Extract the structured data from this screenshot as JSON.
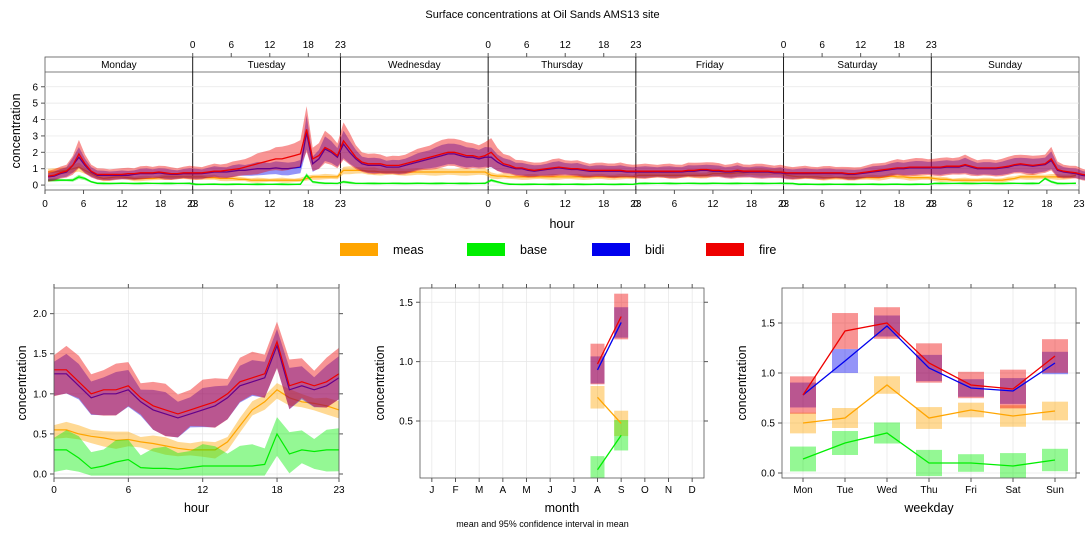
{
  "title": "Surface concentrations at Oil Sands AMS13 site",
  "footer": "mean and 95% confidence interval in mean",
  "legend": [
    {
      "label": "meas",
      "color": "#FFA500"
    },
    {
      "label": "base",
      "color": "#00EE00"
    },
    {
      "label": "bidi",
      "color": "#0000EE"
    },
    {
      "label": "fire",
      "color": "#EE0000"
    }
  ],
  "chart_data": [
    {
      "type": "line",
      "panel": "day-hour",
      "days": [
        "Monday",
        "Tuesday",
        "Wednesday",
        "Thursday",
        "Friday",
        "Saturday",
        "Sunday"
      ],
      "top_ticks": [
        "0",
        "6",
        "12",
        "18",
        "23"
      ],
      "bottom_ticks": [
        "0",
        "6",
        "12",
        "18",
        "23"
      ],
      "xlabel": "hour",
      "ylabel": "concentration",
      "yticks": [
        0,
        1,
        2,
        3,
        4,
        5,
        6
      ],
      "ylim": [
        -0.3,
        6.9
      ],
      "series": [
        {
          "name": "meas",
          "values": [
            0.8,
            0.8,
            0.85,
            0.9,
            1.0,
            1.1,
            0.9,
            0.7,
            0.5,
            0.4,
            0.45,
            0.5,
            0.5,
            0.45,
            0.4,
            0.4,
            0.4,
            0.4,
            0.45,
            0.5,
            0.5,
            0.5,
            0.5,
            0.5,
            0.5,
            0.5,
            0.45,
            0.45,
            0.4,
            0.4,
            0.4,
            0.35,
            0.35,
            0.3,
            0.3,
            0.3,
            0.3,
            0.3,
            0.3,
            0.3,
            0.3,
            0.3,
            0.4,
            0.5,
            0.5,
            0.5,
            0.5,
            0.5,
            0.9,
            0.9,
            0.9,
            0.9,
            0.85,
            0.85,
            0.8,
            0.8,
            0.8,
            0.8,
            0.8,
            0.8,
            0.8,
            0.8,
            0.8,
            0.8,
            0.8,
            0.8,
            0.8,
            0.8,
            0.8,
            0.8,
            0.8,
            0.8,
            0.6,
            0.55,
            0.55,
            0.5,
            0.5,
            0.5,
            0.5,
            0.5,
            0.5,
            0.5,
            0.5,
            0.5,
            0.5,
            0.5,
            0.5,
            0.5,
            0.5,
            0.5,
            0.5,
            0.5,
            0.5,
            0.5,
            0.5,
            0.5,
            0.6,
            0.6,
            0.6,
            0.6,
            0.6,
            0.6,
            0.6,
            0.6,
            0.6,
            0.6,
            0.6,
            0.6,
            0.7,
            0.7,
            0.7,
            0.7,
            0.75,
            0.75,
            0.8,
            0.8,
            0.8,
            0.8,
            0.8,
            0.8,
            0.6,
            0.55,
            0.5,
            0.5,
            0.5,
            0.5,
            0.45,
            0.45,
            0.45,
            0.45,
            0.45,
            0.45,
            0.45,
            0.45,
            0.45,
            0.45,
            0.5,
            0.55,
            0.5,
            0.5,
            0.45,
            0.45,
            0.45,
            0.45,
            0.4,
            0.35,
            0.35,
            0.3,
            0.3,
            0.3,
            0.3,
            0.3,
            0.3,
            0.3,
            0.3,
            0.3,
            0.35,
            0.4,
            0.5,
            0.5,
            0.5,
            0.5,
            0.5,
            0.5,
            0.5,
            0.5,
            0.5,
            0.6
          ]
        },
        {
          "name": "base",
          "values": [
            0.3,
            0.3,
            0.3,
            0.3,
            0.3,
            0.5,
            0.4,
            0.2,
            0.1,
            0.1,
            0.1,
            0.1,
            0.1,
            0.1,
            0.1,
            0.1,
            0.1,
            0.1,
            0.1,
            0.1,
            0.1,
            0.1,
            0.1,
            0.1,
            0.05,
            0.05,
            0.05,
            0.05,
            0.05,
            0.05,
            0.05,
            0.05,
            0.05,
            0.05,
            0.05,
            0.05,
            0.05,
            0.05,
            0.05,
            0.05,
            0.05,
            0.05,
            0.6,
            0.2,
            0.15,
            0.1,
            0.1,
            0.1,
            0.2,
            0.15,
            0.1,
            0.1,
            0.1,
            0.1,
            0.1,
            0.1,
            0.1,
            0.1,
            0.1,
            0.1,
            0.1,
            0.1,
            0.1,
            0.1,
            0.1,
            0.1,
            0.1,
            0.1,
            0.1,
            0.1,
            0.1,
            0.1,
            0.3,
            0.2,
            0.1,
            0.05,
            0.05,
            0.05,
            0.05,
            0.05,
            0.05,
            0.05,
            0.05,
            0.05,
            0.05,
            0.05,
            0.05,
            0.05,
            0.05,
            0.05,
            0.05,
            0.05,
            0.05,
            0.05,
            0.05,
            0.05,
            0.1,
            0.1,
            0.1,
            0.1,
            0.1,
            0.1,
            0.1,
            0.1,
            0.1,
            0.1,
            0.1,
            0.1,
            0.1,
            0.1,
            0.1,
            0.1,
            0.1,
            0.1,
            0.1,
            0.1,
            0.1,
            0.1,
            0.1,
            0.1,
            0.1,
            0.1,
            0.05,
            0.05,
            0.05,
            0.05,
            0.05,
            0.05,
            0.05,
            0.05,
            0.05,
            0.05,
            0.05,
            0.05,
            0.05,
            0.05,
            0.05,
            0.05,
            0.05,
            0.05,
            0.05,
            0.05,
            0.05,
            0.05,
            0.1,
            0.1,
            0.1,
            0.1,
            0.1,
            0.1,
            0.1,
            0.1,
            0.1,
            0.1,
            0.1,
            0.1,
            0.1,
            0.1,
            0.1,
            0.1,
            0.1,
            0.1,
            0.4,
            0.2,
            0.1,
            0.1,
            0.1,
            0.1
          ]
        },
        {
          "name": "bidi",
          "values": [
            0.5,
            0.55,
            0.7,
            0.8,
            1.2,
            1.7,
            1.2,
            0.8,
            0.6,
            0.6,
            0.6,
            0.6,
            0.6,
            0.6,
            0.65,
            0.7,
            0.7,
            0.7,
            0.75,
            0.7,
            0.65,
            0.65,
            0.7,
            0.7,
            0.7,
            0.7,
            0.75,
            0.8,
            0.8,
            0.8,
            0.85,
            0.9,
            0.9,
            0.95,
            1.0,
            1.0,
            1.0,
            1.05,
            1.0,
            1.0,
            1.05,
            1.1,
            3.2,
            1.3,
            1.6,
            2.2,
            2.0,
            1.7,
            2.5,
            2.0,
            1.6,
            1.3,
            1.2,
            1.2,
            1.2,
            1.1,
            1.1,
            1.1,
            1.2,
            1.3,
            1.4,
            1.5,
            1.6,
            1.7,
            1.8,
            1.9,
            1.9,
            1.8,
            1.7,
            1.7,
            1.6,
            1.7,
            1.7,
            1.4,
            1.2,
            1.1,
            1.0,
            1.0,
            0.9,
            0.85,
            0.9,
            0.95,
            1.0,
            1.05,
            1.0,
            0.95,
            0.95,
            0.9,
            0.85,
            0.85,
            0.85,
            0.85,
            0.85,
            0.85,
            0.8,
            0.8,
            0.8,
            0.8,
            0.8,
            0.8,
            0.8,
            0.8,
            0.8,
            0.8,
            0.85,
            0.85,
            0.9,
            0.9,
            0.85,
            0.85,
            0.8,
            0.8,
            0.85,
            0.8,
            0.8,
            0.8,
            0.8,
            0.8,
            0.75,
            0.75,
            0.7,
            0.7,
            0.7,
            0.7,
            0.7,
            0.7,
            0.7,
            0.7,
            0.7,
            0.7,
            0.65,
            0.65,
            0.7,
            0.75,
            0.8,
            0.85,
            0.9,
            0.95,
            1.0,
            1.0,
            1.05,
            1.05,
            1.05,
            1.05,
            1.05,
            1.05,
            1.1,
            1.1,
            1.1,
            1.2,
            1.1,
            1.0,
            1.0,
            1.0,
            1.0,
            1.05,
            1.1,
            1.2,
            1.25,
            1.2,
            1.15,
            1.2,
            1.25,
            1.5,
            0.9,
            0.8,
            0.75,
            0.7,
            0.6,
            0.55
          ]
        },
        {
          "name": "fire",
          "values": [
            0.55,
            0.6,
            0.75,
            0.85,
            1.2,
            1.9,
            1.3,
            0.85,
            0.65,
            0.65,
            0.65,
            0.65,
            0.65,
            0.7,
            0.7,
            0.75,
            0.75,
            0.75,
            0.8,
            0.75,
            0.7,
            0.7,
            0.75,
            0.75,
            0.75,
            0.75,
            0.8,
            0.85,
            0.85,
            0.9,
            0.95,
            1.0,
            1.1,
            1.2,
            1.3,
            1.4,
            1.5,
            1.6,
            1.6,
            1.7,
            1.8,
            1.9,
            3.4,
            1.6,
            1.8,
            2.3,
            2.1,
            1.8,
            2.7,
            2.2,
            1.7,
            1.4,
            1.3,
            1.3,
            1.3,
            1.2,
            1.2,
            1.2,
            1.3,
            1.4,
            1.5,
            1.6,
            1.7,
            1.8,
            1.9,
            2.0,
            2.0,
            1.9,
            1.8,
            1.8,
            1.7,
            1.8,
            2.0,
            1.6,
            1.3,
            1.2,
            1.05,
            1.05,
            0.95,
            0.9,
            0.95,
            1.0,
            1.05,
            1.1,
            1.05,
            1.0,
            1.0,
            0.95,
            0.9,
            0.9,
            0.9,
            0.9,
            0.9,
            0.9,
            0.85,
            0.85,
            0.85,
            0.85,
            0.85,
            0.85,
            0.85,
            0.85,
            0.85,
            0.85,
            0.9,
            0.9,
            0.95,
            0.95,
            0.9,
            0.9,
            0.85,
            0.85,
            0.9,
            0.85,
            0.85,
            0.85,
            0.85,
            0.85,
            0.8,
            0.8,
            0.75,
            0.75,
            0.75,
            0.75,
            0.75,
            0.75,
            0.75,
            0.75,
            0.75,
            0.75,
            0.7,
            0.7,
            0.75,
            0.8,
            0.85,
            0.9,
            0.95,
            1.0,
            1.05,
            1.05,
            1.1,
            1.1,
            1.1,
            1.1,
            1.1,
            1.1,
            1.15,
            1.15,
            1.15,
            1.25,
            1.15,
            1.05,
            1.05,
            1.05,
            1.05,
            1.1,
            1.15,
            1.25,
            1.3,
            1.25,
            1.2,
            1.25,
            1.3,
            1.6,
            0.95,
            0.85,
            0.8,
            0.75,
            0.65,
            0.6
          ]
        }
      ]
    },
    {
      "type": "line",
      "panel": "hour",
      "x": [
        0,
        1,
        2,
        3,
        4,
        5,
        6,
        7,
        8,
        9,
        10,
        11,
        12,
        13,
        14,
        15,
        16,
        17,
        18,
        19,
        20,
        21,
        22,
        23
      ],
      "xticks": [
        0,
        6,
        12,
        18,
        23
      ],
      "xlabel": "hour",
      "ylabel": "concentration",
      "yticks": [
        "0.0",
        "0.5",
        "1.0",
        "1.5",
        "2.0"
      ],
      "ylim": [
        -0.05,
        2.32
      ],
      "series": [
        {
          "name": "meas",
          "values": [
            0.55,
            0.55,
            0.5,
            0.47,
            0.45,
            0.42,
            0.43,
            0.4,
            0.38,
            0.35,
            0.32,
            0.3,
            0.3,
            0.3,
            0.4,
            0.6,
            0.8,
            0.9,
            1.05,
            0.95,
            0.9,
            0.88,
            0.85,
            0.8
          ]
        },
        {
          "name": "base",
          "values": [
            0.3,
            0.3,
            0.2,
            0.07,
            0.1,
            0.15,
            0.18,
            0.08,
            0.07,
            0.07,
            0.06,
            0.08,
            0.1,
            0.1,
            0.1,
            0.1,
            0.1,
            0.12,
            0.5,
            0.25,
            0.3,
            0.28,
            0.3,
            0.3
          ]
        },
        {
          "name": "bidi",
          "values": [
            1.25,
            1.25,
            1.1,
            0.95,
            1.0,
            1.0,
            1.05,
            0.9,
            0.8,
            0.75,
            0.7,
            0.75,
            0.8,
            0.85,
            0.95,
            1.1,
            1.15,
            1.2,
            1.6,
            1.05,
            1.1,
            1.05,
            1.1,
            1.2
          ]
        },
        {
          "name": "fire",
          "values": [
            1.3,
            1.3,
            1.15,
            1.0,
            1.05,
            1.05,
            1.1,
            0.95,
            0.85,
            0.8,
            0.75,
            0.8,
            0.85,
            0.9,
            1.0,
            1.15,
            1.2,
            1.25,
            1.65,
            1.1,
            1.15,
            1.1,
            1.15,
            1.25
          ]
        }
      ]
    },
    {
      "type": "line",
      "panel": "month",
      "categories": [
        "J",
        "F",
        "M",
        "A",
        "M",
        "J",
        "J",
        "A",
        "S",
        "O",
        "N",
        "D"
      ],
      "xlabel": "month",
      "ylabel": "concentration",
      "yticks": [
        "0.5",
        "1.0",
        "1.5"
      ],
      "ylim": [
        0.02,
        1.62
      ],
      "series": [
        {
          "name": "meas",
          "values": [
            null,
            null,
            null,
            null,
            null,
            null,
            null,
            0.7,
            0.48,
            null,
            null,
            null
          ]
        },
        {
          "name": "base",
          "values": [
            null,
            null,
            null,
            null,
            null,
            null,
            null,
            0.09,
            0.38,
            null,
            null,
            null
          ]
        },
        {
          "name": "bidi",
          "values": [
            null,
            null,
            null,
            null,
            null,
            null,
            null,
            0.93,
            1.33,
            null,
            null,
            null
          ]
        },
        {
          "name": "fire",
          "values": [
            null,
            null,
            null,
            null,
            null,
            null,
            null,
            0.98,
            1.38,
            null,
            null,
            null
          ]
        }
      ]
    },
    {
      "type": "line",
      "panel": "weekday",
      "categories": [
        "Mon",
        "Tue",
        "Wed",
        "Thu",
        "Fri",
        "Sat",
        "Sun"
      ],
      "xlabel": "weekday",
      "ylabel": "concentration",
      "yticks": [
        "0.0",
        "0.5",
        "1.0",
        "1.5"
      ],
      "ylim": [
        -0.05,
        1.85
      ],
      "series": [
        {
          "name": "meas",
          "values": [
            0.5,
            0.55,
            0.88,
            0.55,
            0.63,
            0.57,
            0.62
          ]
        },
        {
          "name": "base",
          "values": [
            0.14,
            0.3,
            0.4,
            0.1,
            0.1,
            0.07,
            0.13
          ]
        },
        {
          "name": "bidi",
          "values": [
            0.78,
            1.12,
            1.47,
            1.05,
            0.85,
            0.82,
            1.1
          ]
        },
        {
          "name": "fire",
          "values": [
            0.78,
            1.42,
            1.5,
            1.1,
            0.88,
            0.84,
            1.17
          ]
        }
      ]
    }
  ]
}
